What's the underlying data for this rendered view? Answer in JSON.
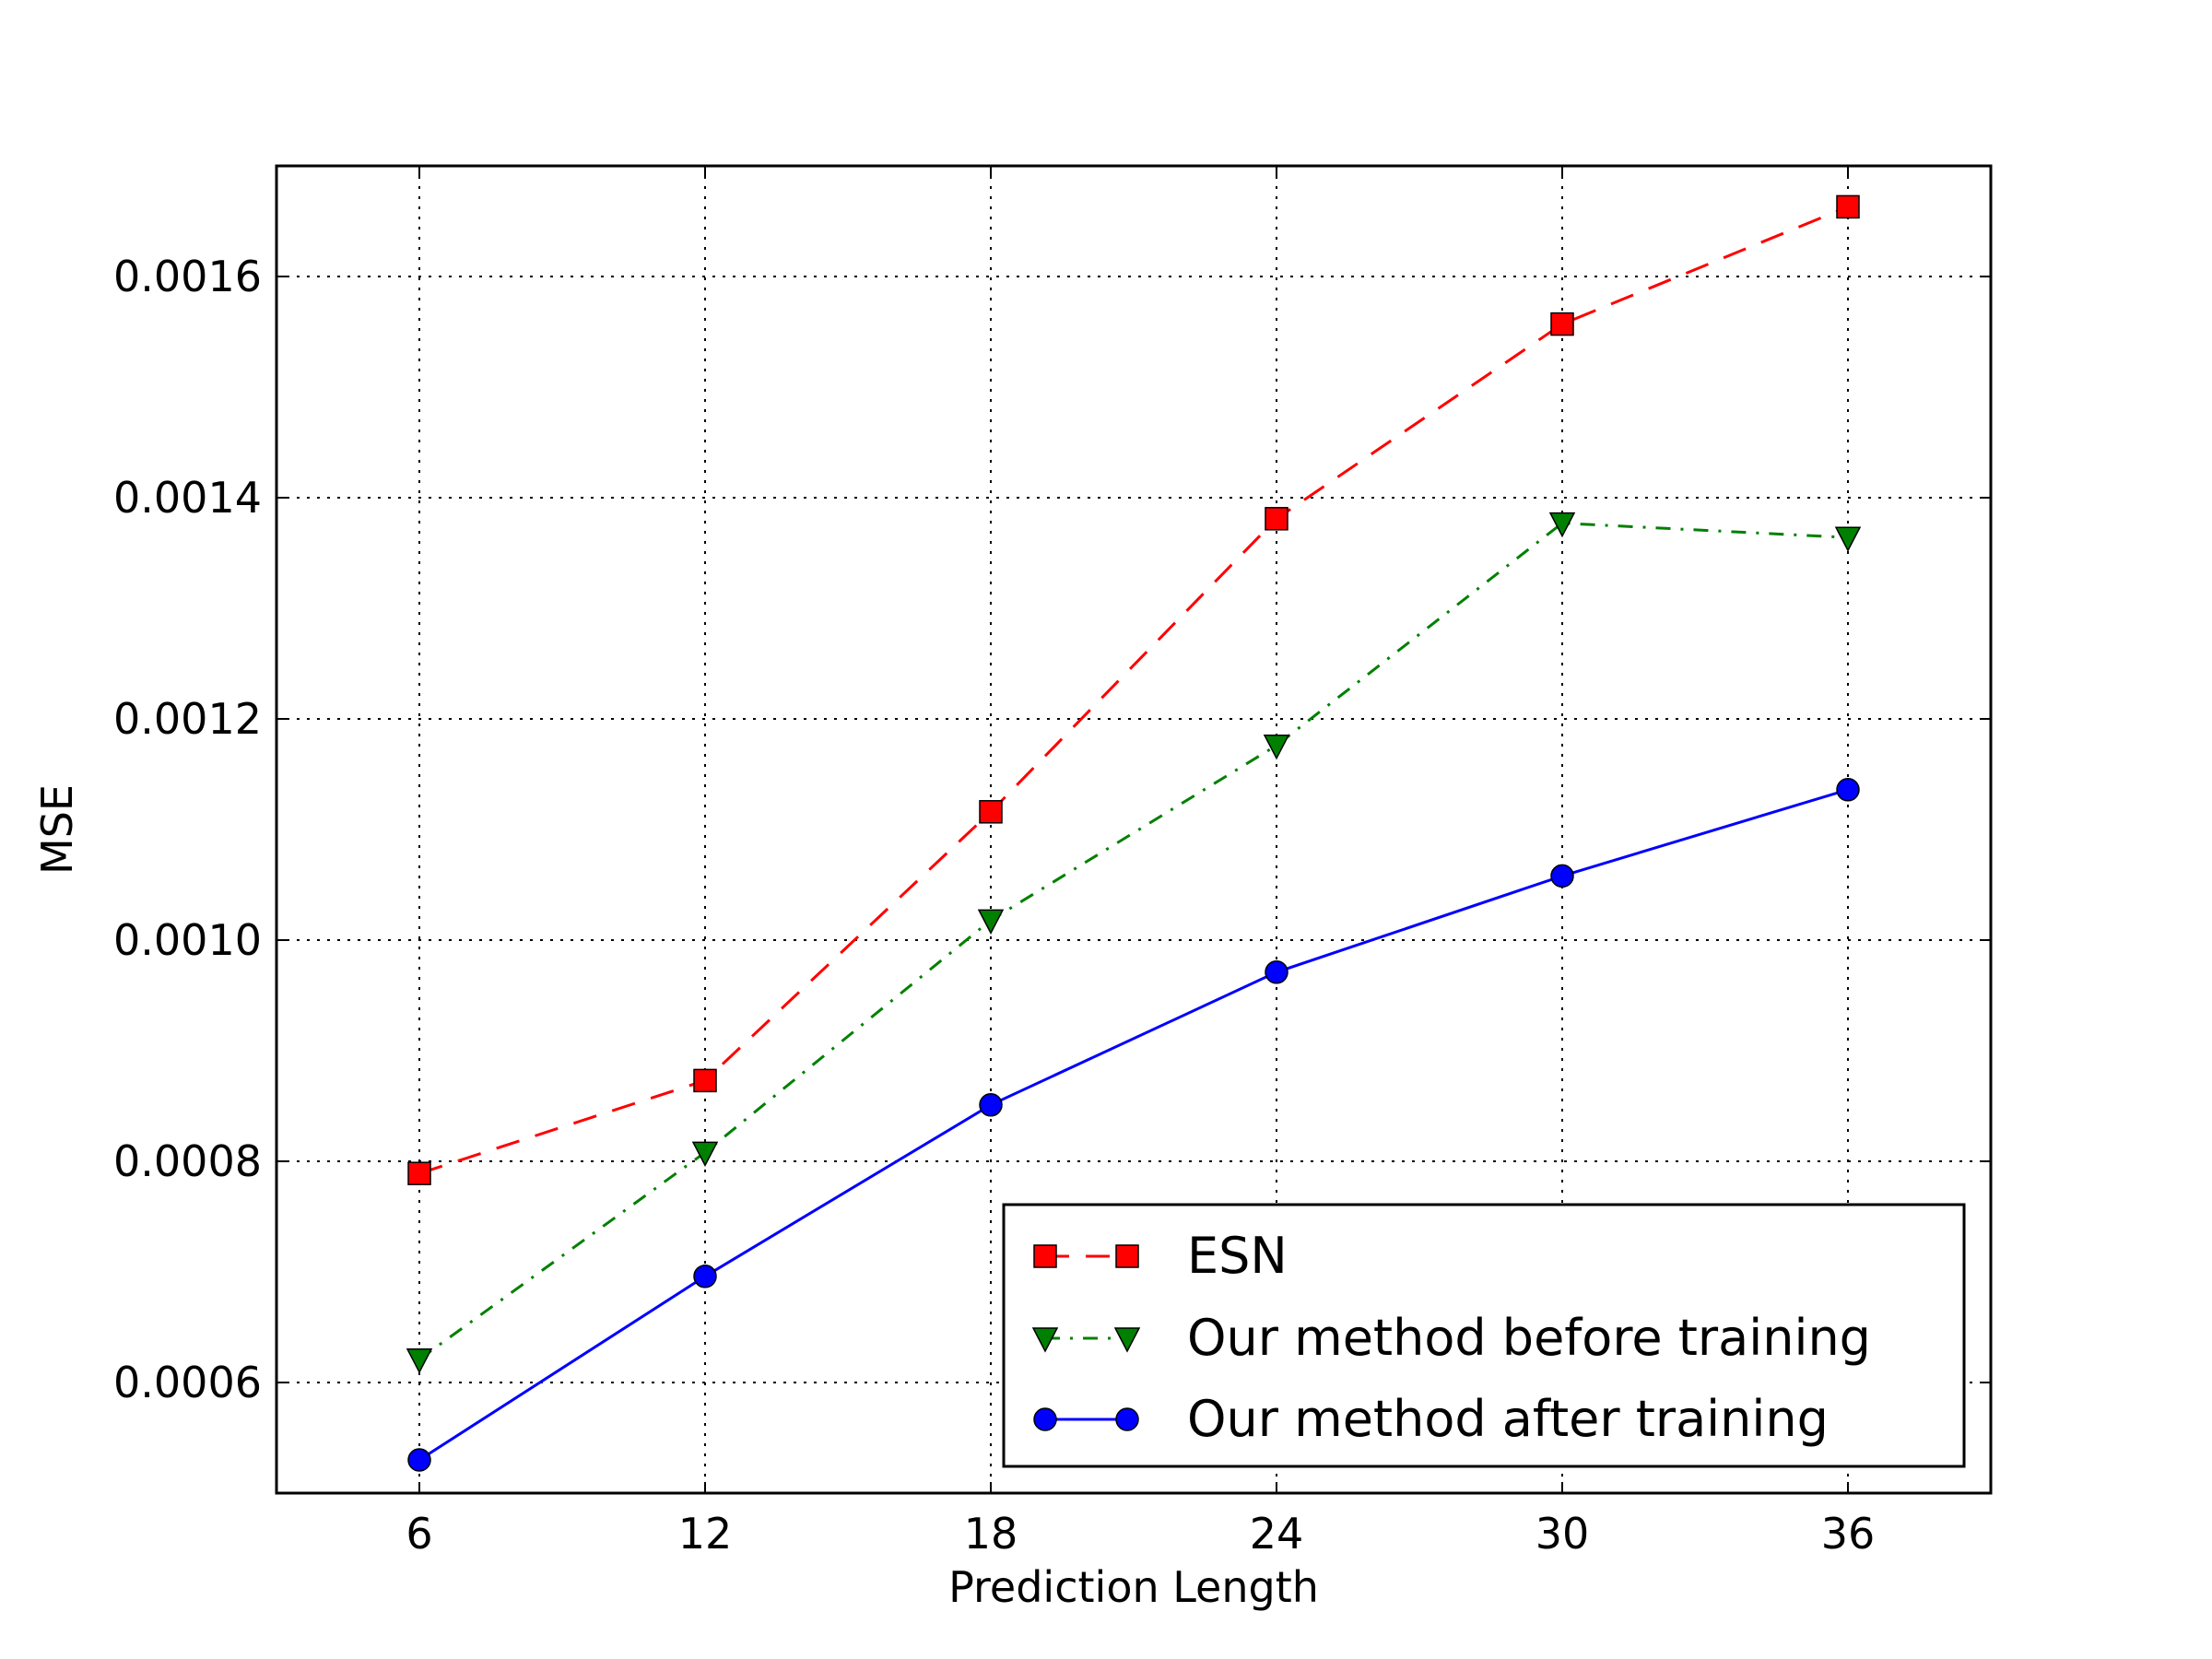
{
  "chart_data": {
    "type": "line",
    "title": "",
    "xlabel": "Prediction Length",
    "ylabel": "MSE",
    "x": [
      6,
      12,
      18,
      24,
      30,
      36
    ],
    "xlim": [
      3,
      39
    ],
    "ylim": [
      0.0005,
      0.0017
    ],
    "xticks": [
      6,
      12,
      18,
      24,
      30,
      36
    ],
    "xtick_labels": [
      "6",
      "12",
      "18",
      "24",
      "30",
      "36"
    ],
    "yticks": [
      0.0006,
      0.0008,
      0.001,
      0.0012,
      0.0014,
      0.0016
    ],
    "ytick_labels": [
      "0.0006",
      "0.0008",
      "0.0010",
      "0.0012",
      "0.0014",
      "0.0016"
    ],
    "grid": true,
    "legend_position": "bottom-right",
    "series": [
      {
        "name": "ESN",
        "color": "#ff0000",
        "marker": "square",
        "line_style": "dashed",
        "values": [
          0.000789,
          0.000873,
          0.001116,
          0.001381,
          0.001557,
          0.001663
        ]
      },
      {
        "name": "Our method before training",
        "color": "#008000",
        "marker": "triangle-down",
        "line_style": "dash-dot",
        "values": [
          0.000621,
          0.000808,
          0.001018,
          0.001176,
          0.001377,
          0.001364
        ]
      },
      {
        "name": "Our method after training",
        "color": "#0000ff",
        "marker": "circle",
        "line_style": "solid",
        "values": [
          0.00053,
          0.000696,
          0.000851,
          0.000971,
          0.001058,
          0.001136
        ]
      }
    ]
  }
}
